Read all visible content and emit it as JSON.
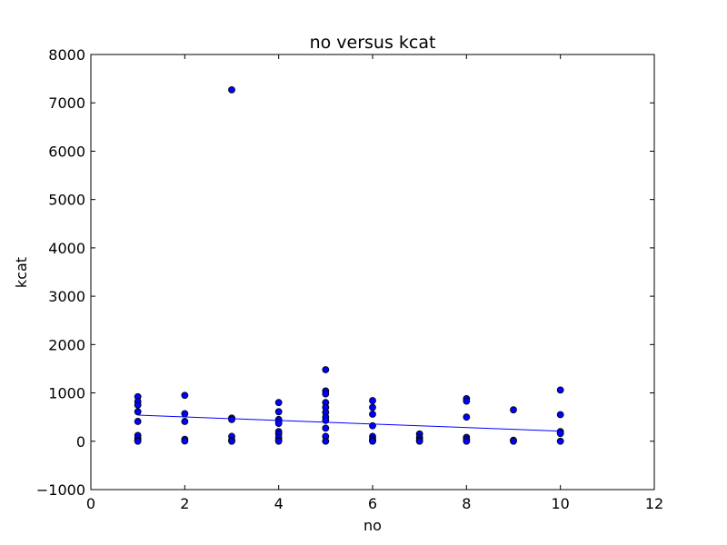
{
  "chart_data": {
    "type": "scatter",
    "title": "no versus kcat",
    "xlabel": "no",
    "ylabel": "kcat",
    "xlim": [
      0,
      12
    ],
    "ylim": [
      -1000,
      8000
    ],
    "xticks": [
      0,
      2,
      4,
      6,
      8,
      10,
      12
    ],
    "yticks": [
      -1000,
      0,
      1000,
      2000,
      3000,
      4000,
      5000,
      6000,
      7000,
      8000
    ],
    "xtick_labels": [
      "0",
      "2",
      "4",
      "6",
      "8",
      "10",
      "12"
    ],
    "ytick_labels": [
      "−1000",
      "0",
      "1000",
      "2000",
      "3000",
      "4000",
      "5000",
      "6000",
      "7000",
      "8000"
    ],
    "grid": false,
    "point_color": "#0000ff",
    "line_color": "#0000ff",
    "points": [
      {
        "x": 1,
        "y": 920
      },
      {
        "x": 1,
        "y": 820
      },
      {
        "x": 1,
        "y": 750
      },
      {
        "x": 1,
        "y": 610
      },
      {
        "x": 1,
        "y": 410
      },
      {
        "x": 1,
        "y": 120
      },
      {
        "x": 1,
        "y": 60
      },
      {
        "x": 1,
        "y": 20
      },
      {
        "x": 1,
        "y": 0
      },
      {
        "x": 2,
        "y": 950
      },
      {
        "x": 2,
        "y": 570
      },
      {
        "x": 2,
        "y": 410
      },
      {
        "x": 2,
        "y": 40
      },
      {
        "x": 2,
        "y": 5
      },
      {
        "x": 3,
        "y": 7270
      },
      {
        "x": 3,
        "y": 480
      },
      {
        "x": 3,
        "y": 450
      },
      {
        "x": 3,
        "y": 100
      },
      {
        "x": 3,
        "y": 20
      },
      {
        "x": 3,
        "y": 0
      },
      {
        "x": 4,
        "y": 800
      },
      {
        "x": 4,
        "y": 610
      },
      {
        "x": 4,
        "y": 450
      },
      {
        "x": 4,
        "y": 400
      },
      {
        "x": 4,
        "y": 370
      },
      {
        "x": 4,
        "y": 200
      },
      {
        "x": 4,
        "y": 150
      },
      {
        "x": 4,
        "y": 80
      },
      {
        "x": 4,
        "y": 20
      },
      {
        "x": 4,
        "y": 0
      },
      {
        "x": 5,
        "y": 1480
      },
      {
        "x": 5,
        "y": 1040
      },
      {
        "x": 5,
        "y": 980
      },
      {
        "x": 5,
        "y": 800
      },
      {
        "x": 5,
        "y": 700
      },
      {
        "x": 5,
        "y": 600
      },
      {
        "x": 5,
        "y": 500
      },
      {
        "x": 5,
        "y": 430
      },
      {
        "x": 5,
        "y": 270
      },
      {
        "x": 5,
        "y": 100
      },
      {
        "x": 5,
        "y": 0
      },
      {
        "x": 6,
        "y": 840
      },
      {
        "x": 6,
        "y": 700
      },
      {
        "x": 6,
        "y": 560
      },
      {
        "x": 6,
        "y": 320
      },
      {
        "x": 6,
        "y": 100
      },
      {
        "x": 6,
        "y": 50
      },
      {
        "x": 6,
        "y": 10
      },
      {
        "x": 6,
        "y": 0
      },
      {
        "x": 7,
        "y": 150
      },
      {
        "x": 7,
        "y": 80
      },
      {
        "x": 7,
        "y": 30
      },
      {
        "x": 7,
        "y": 0
      },
      {
        "x": 8,
        "y": 880
      },
      {
        "x": 8,
        "y": 830
      },
      {
        "x": 8,
        "y": 500
      },
      {
        "x": 8,
        "y": 80
      },
      {
        "x": 8,
        "y": 40
      },
      {
        "x": 8,
        "y": 0
      },
      {
        "x": 9,
        "y": 650
      },
      {
        "x": 9,
        "y": 20
      },
      {
        "x": 9,
        "y": 0
      },
      {
        "x": 10,
        "y": 1060
      },
      {
        "x": 10,
        "y": 550
      },
      {
        "x": 10,
        "y": 200
      },
      {
        "x": 10,
        "y": 160
      },
      {
        "x": 10,
        "y": 0
      }
    ],
    "fit_line": {
      "x": [
        1,
        10
      ],
      "y": [
        540,
        210
      ]
    }
  }
}
